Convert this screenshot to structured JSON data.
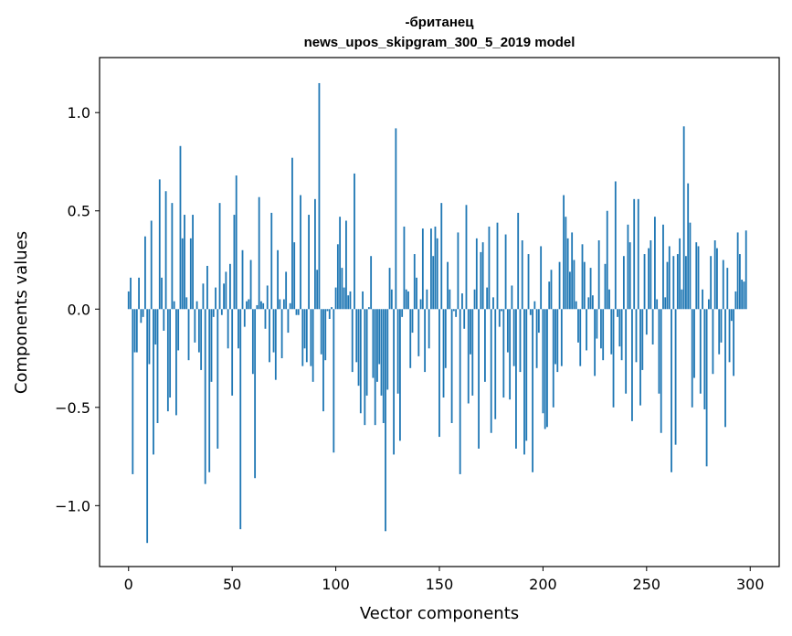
{
  "chart_data": {
    "type": "bar",
    "title": "-британец",
    "subtitle": "news_upos_skipgram_300_5_2019 model",
    "xlabel": "Vector components",
    "ylabel": "Components values",
    "xlim": [
      -14,
      314
    ],
    "ylim": [
      -1.31,
      1.28
    ],
    "xticks": [
      0,
      50,
      100,
      150,
      200,
      250,
      300
    ],
    "xtick_labels": [
      "0",
      "50",
      "100",
      "150",
      "200",
      "250",
      "300"
    ],
    "yticks": [
      -1.0,
      -0.5,
      0.0,
      0.5,
      1.0
    ],
    "ytick_labels": [
      "−1.0",
      "−0.5",
      "0.0",
      "0.5",
      "1.0"
    ],
    "grid": false,
    "bar_color": "#1f77b4",
    "series": [
      {
        "values": [
          0.09,
          0.16,
          -0.84,
          -0.22,
          -0.22,
          0.16,
          -0.07,
          -0.04,
          0.37,
          -1.19,
          -0.28,
          0.45,
          -0.74,
          -0.18,
          -0.58,
          0.66,
          0.16,
          -0.11,
          0.6,
          -0.52,
          -0.45,
          0.54,
          0.04,
          -0.54,
          -0.21,
          0.83,
          0.36,
          0.48,
          0.06,
          -0.26,
          0.36,
          0.48,
          -0.17,
          0.04,
          -0.22,
          -0.31,
          0.13,
          -0.89,
          0.22,
          -0.83,
          -0.37,
          -0.04,
          0.11,
          -0.71,
          0.54,
          -0.03,
          0.13,
          0.19,
          -0.2,
          0.23,
          -0.44,
          0.48,
          0.68,
          -0.2,
          -1.12,
          0.3,
          -0.09,
          0.04,
          0.05,
          0.25,
          -0.33,
          -0.86,
          0.02,
          0.57,
          0.04,
          0.03,
          -0.1,
          0.12,
          -0.27,
          0.49,
          -0.22,
          -0.36,
          0.3,
          0.05,
          -0.25,
          0.05,
          0.19,
          -0.12,
          0.03,
          0.77,
          0.34,
          -0.03,
          -0.03,
          0.58,
          -0.29,
          -0.2,
          -0.27,
          0.48,
          -0.29,
          -0.37,
          0.56,
          0.2,
          1.15,
          -0.23,
          -0.52,
          -0.26,
          -0.01,
          -0.05,
          0.01,
          -0.73,
          0.11,
          0.33,
          0.47,
          0.21,
          0.11,
          0.45,
          0.07,
          0.09,
          -0.32,
          0.69,
          -0.27,
          -0.39,
          -0.53,
          0.09,
          -0.59,
          -0.44,
          0.01,
          0.27,
          -0.35,
          -0.59,
          -0.37,
          -0.28,
          -0.44,
          -0.58,
          -1.13,
          -0.41,
          0.21,
          0.1,
          -0.74,
          0.92,
          -0.43,
          -0.67,
          -0.04,
          0.42,
          0.1,
          0.09,
          -0.3,
          -0.12,
          0.28,
          0.16,
          -0.24,
          0.05,
          0.41,
          -0.32,
          0.1,
          -0.2,
          0.41,
          0.27,
          0.42,
          0.36,
          -0.65,
          0.54,
          -0.45,
          -0.3,
          0.24,
          0.1,
          -0.58,
          -0.01,
          -0.04,
          0.39,
          -0.84,
          0.08,
          -0.1,
          0.53,
          -0.48,
          -0.23,
          -0.44,
          0.1,
          0.36,
          -0.71,
          0.29,
          0.34,
          -0.37,
          0.11,
          0.42,
          -0.63,
          0.06,
          -0.56,
          0.44,
          -0.09,
          -0.01,
          -0.45,
          0.38,
          -0.22,
          -0.46,
          0.12,
          -0.29,
          -0.71,
          0.49,
          -0.32,
          0.35,
          -0.74,
          -0.67,
          0.28,
          -0.03,
          -0.83,
          0.04,
          -0.3,
          -0.12,
          0.32,
          -0.53,
          -0.61,
          -0.6,
          0.14,
          0.2,
          -0.5,
          -0.28,
          -0.32,
          0.24,
          -0.29,
          0.58,
          0.47,
          0.36,
          0.19,
          0.39,
          0.25,
          0.04,
          -0.17,
          -0.29,
          0.33,
          0.24,
          -0.21,
          0.06,
          0.21,
          0.07,
          -0.34,
          -0.15,
          0.35,
          -0.2,
          -0.26,
          0.23,
          0.5,
          0.1,
          -0.23,
          -0.5,
          0.65,
          -0.04,
          -0.19,
          -0.26,
          0.27,
          -0.43,
          0.43,
          0.34,
          -0.57,
          0.56,
          -0.27,
          0.56,
          -0.49,
          -0.31,
          0.28,
          -0.13,
          0.31,
          0.35,
          -0.18,
          0.47,
          0.05,
          -0.43,
          -0.63,
          0.43,
          0.06,
          0.24,
          0.32,
          -0.83,
          0.27,
          -0.69,
          0.28,
          0.36,
          0.1,
          0.93,
          0.27,
          0.64,
          0.44,
          -0.5,
          -0.35,
          0.34,
          0.32,
          -0.43,
          0.1,
          -0.51,
          -0.8,
          0.05,
          0.27,
          -0.33,
          0.35,
          0.31,
          -0.23,
          -0.17,
          0.25,
          -0.6,
          0.21,
          -0.27,
          -0.06,
          -0.34,
          0.09,
          0.39,
          0.28,
          0.15,
          0.14,
          0.4
        ]
      }
    ]
  }
}
